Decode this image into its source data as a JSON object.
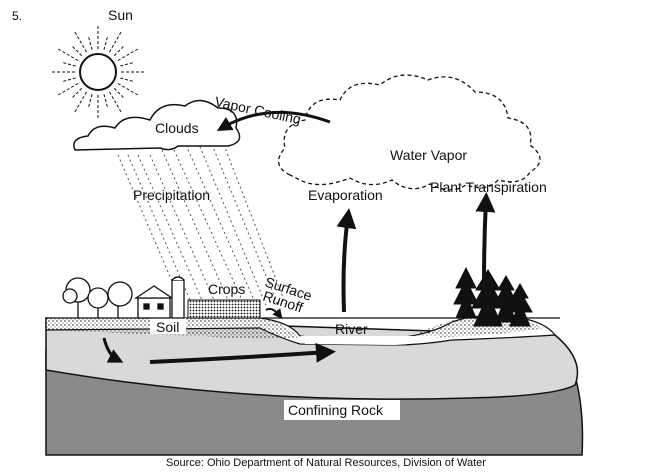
{
  "question_number": "5.",
  "labels": {
    "sun": "Sun",
    "clouds": "Clouds",
    "vapor_cooling": "Vapor Cooling",
    "water_vapor": "Water Vapor",
    "precipitation": "Precipitation",
    "evaporation": "Evaporation",
    "plant_transpiration": "Plant Transpiration",
    "crops": "Crops",
    "surface": "Surface",
    "runoff": "Runoff",
    "soil": "Soil",
    "river": "River",
    "confining_rock": "Confining Rock"
  },
  "source": "Source: Ohio Department of Natural Resources, Division of Water",
  "colors": {
    "rock": "#8a8a8a",
    "aquifer": "#d9d9d9",
    "line": "#111111",
    "background": "#ffffff"
  }
}
